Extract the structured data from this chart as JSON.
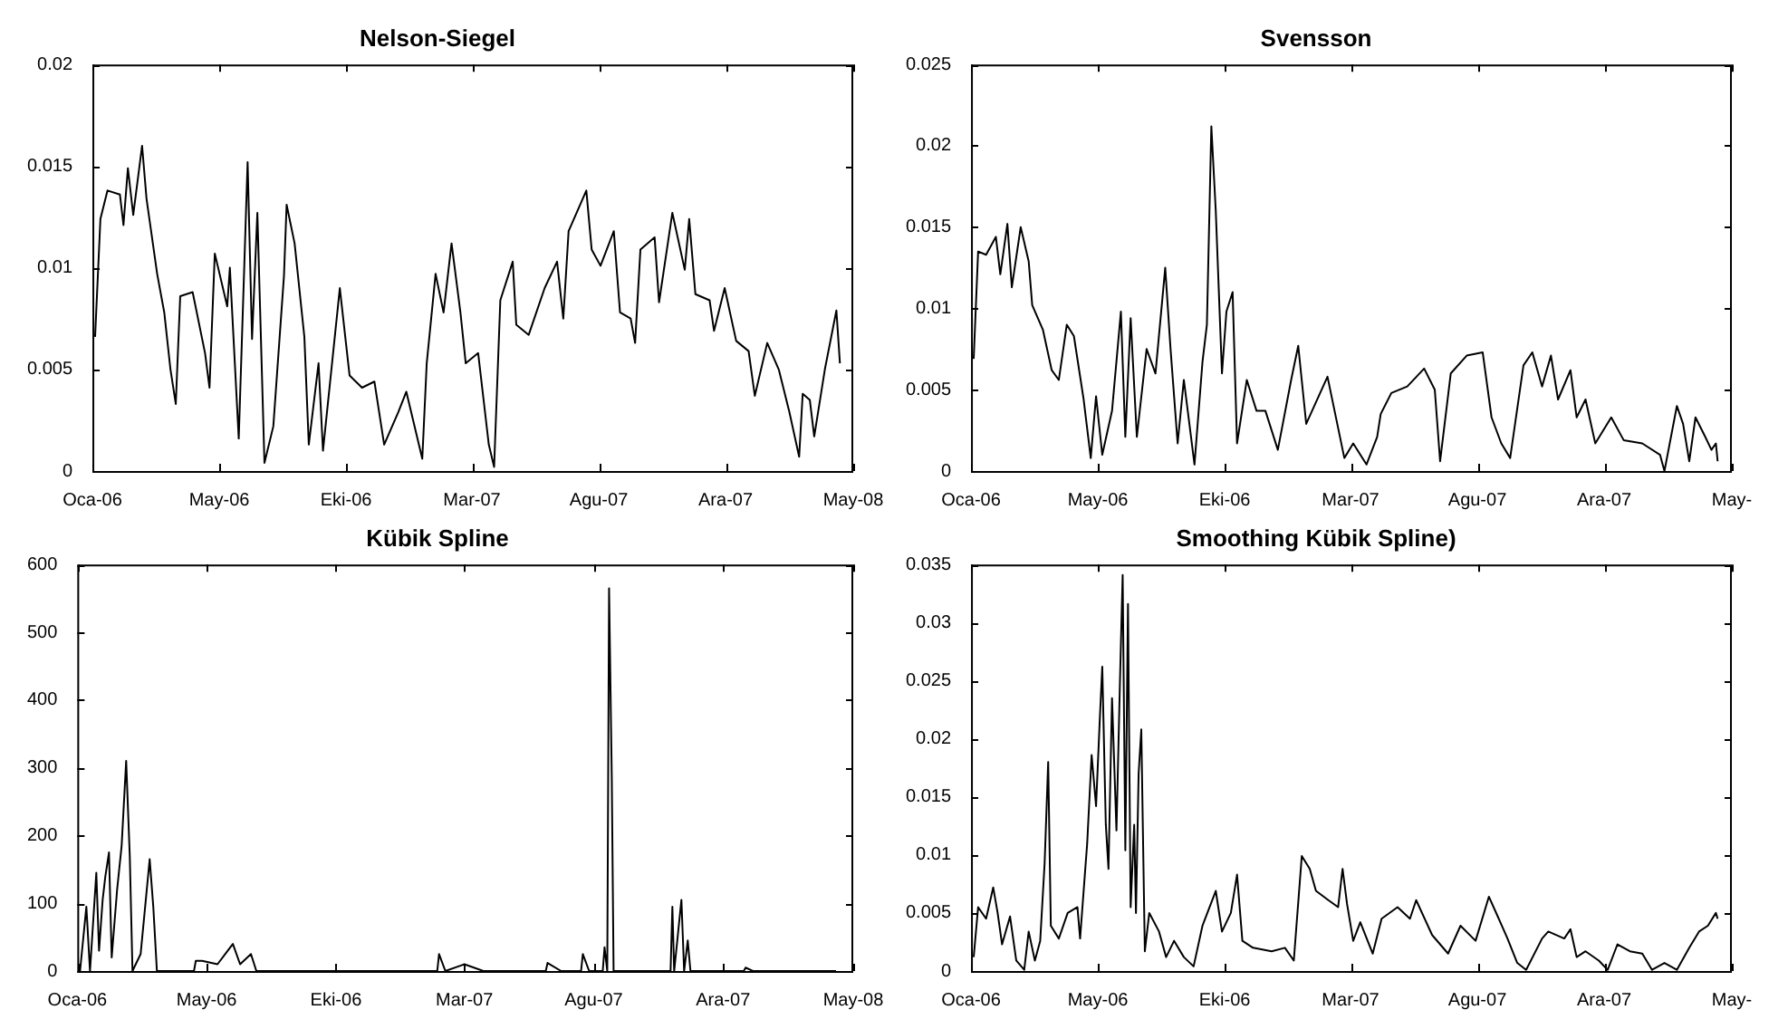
{
  "chart_data": [
    {
      "type": "line",
      "title": "Nelson-Siegel",
      "color": "#000000",
      "xlim": [
        "2006-01-07",
        "2008-05-14"
      ],
      "xticks": [
        {
          "value": "2006-01-07",
          "label": "Oca-06"
        },
        {
          "value": "2006-05-30",
          "label": "May-06"
        },
        {
          "value": "2006-10-20",
          "label": "Eki-06"
        },
        {
          "value": "2007-03-11",
          "label": "Mar-07"
        },
        {
          "value": "2007-08-01",
          "label": "Agu-07"
        },
        {
          "value": "2007-12-22",
          "label": "Ara-07"
        },
        {
          "value": "2008-05-14",
          "label": "May-08"
        }
      ],
      "ylim": [
        0,
        0.02
      ],
      "yticks": [
        0,
        0.005,
        0.01,
        0.015,
        0.02
      ],
      "x": [
        "2006-01-10",
        "2006-01-16",
        "2006-01-24",
        "2006-02-07",
        "2006-02-11",
        "2006-02-16",
        "2006-02-22",
        "2006-03-04",
        "2006-03-09",
        "2006-03-21",
        "2006-03-29",
        "2006-04-05",
        "2006-04-11",
        "2006-04-16",
        "2006-04-30",
        "2006-05-14",
        "2006-05-19",
        "2006-05-25",
        "2006-06-08",
        "2006-06-11",
        "2006-06-21",
        "2006-07-01",
        "2006-07-06",
        "2006-07-12",
        "2006-07-20",
        "2006-07-30",
        "2006-08-11",
        "2006-08-14",
        "2006-08-23",
        "2006-09-03",
        "2006-09-08",
        "2006-09-19",
        "2006-09-24",
        "2006-10-13",
        "2006-10-24",
        "2006-11-07",
        "2006-11-21",
        "2006-12-02",
        "2006-12-18",
        "2006-12-27",
        "2007-01-14",
        "2007-01-19",
        "2007-01-29",
        "2007-02-07",
        "2007-02-16",
        "2007-02-26",
        "2007-03-04",
        "2007-03-18",
        "2007-03-30",
        "2007-04-05",
        "2007-04-12",
        "2007-04-26",
        "2007-04-30",
        "2007-05-14",
        "2007-06-01",
        "2007-06-15",
        "2007-06-22",
        "2007-06-28",
        "2007-07-18",
        "2007-07-24",
        "2007-08-03",
        "2007-08-18",
        "2007-08-25",
        "2007-09-06",
        "2007-09-11",
        "2007-09-17",
        "2007-10-03",
        "2007-10-08",
        "2007-10-23",
        "2007-11-06",
        "2007-11-11",
        "2007-11-18",
        "2007-12-04",
        "2007-12-09",
        "2007-12-21",
        "2008-01-03",
        "2008-01-17",
        "2008-01-24",
        "2008-02-07",
        "2008-02-20",
        "2008-03-03",
        "2008-03-14",
        "2008-03-18",
        "2008-03-26",
        "2008-03-31",
        "2008-04-12",
        "2008-04-25",
        "2008-04-29"
      ],
      "values": [
        0.0066,
        0.0124,
        0.0138,
        0.0136,
        0.0121,
        0.0149,
        0.0126,
        0.016,
        0.0134,
        0.0097,
        0.0078,
        0.005,
        0.0033,
        0.0086,
        0.0088,
        0.0058,
        0.0041,
        0.0107,
        0.0081,
        0.01,
        0.0016,
        0.0152,
        0.0065,
        0.0127,
        0.0004,
        0.0022,
        0.0096,
        0.0131,
        0.0112,
        0.0066,
        0.0013,
        0.0053,
        0.001,
        0.009,
        0.0047,
        0.0041,
        0.0044,
        0.0013,
        0.0029,
        0.0039,
        0.0006,
        0.0053,
        0.0097,
        0.0078,
        0.0112,
        0.0078,
        0.0053,
        0.0058,
        0.0013,
        0.0002,
        0.0084,
        0.0103,
        0.0072,
        0.0067,
        0.009,
        0.0103,
        0.0075,
        0.0118,
        0.0138,
        0.0109,
        0.0101,
        0.0118,
        0.0078,
        0.0075,
        0.0063,
        0.0109,
        0.0115,
        0.0083,
        0.0127,
        0.0099,
        0.0124,
        0.0087,
        0.0084,
        0.0069,
        0.009,
        0.0064,
        0.0059,
        0.0037,
        0.0063,
        0.005,
        0.0029,
        0.0007,
        0.0038,
        0.0035,
        0.0017,
        0.005,
        0.0079,
        0.0053
      ]
    },
    {
      "type": "line",
      "title": "Svensson",
      "color": "#000000",
      "xlim": [
        "2006-01-07",
        "2008-05-14"
      ],
      "xticks": [
        {
          "value": "2006-01-07",
          "label": "Oca-06"
        },
        {
          "value": "2006-05-30",
          "label": "May-06"
        },
        {
          "value": "2006-10-20",
          "label": "Eki-06"
        },
        {
          "value": "2007-03-11",
          "label": "Mar-07"
        },
        {
          "value": "2007-08-01",
          "label": "Agu-07"
        },
        {
          "value": "2007-12-22",
          "label": "Ara-07"
        },
        {
          "value": "2008-05-14",
          "label": "May-"
        }
      ],
      "ylim": [
        0,
        0.025
      ],
      "yticks": [
        0,
        0.005,
        0.01,
        0.015,
        0.02,
        0.025
      ],
      "x": [
        "2006-01-10",
        "2006-01-15",
        "2006-01-24",
        "2006-02-04",
        "2006-02-09",
        "2006-02-17",
        "2006-02-22",
        "2006-03-04",
        "2006-03-13",
        "2006-03-17",
        "2006-03-29",
        "2006-04-08",
        "2006-04-16",
        "2006-04-25",
        "2006-05-03",
        "2006-05-14",
        "2006-05-22",
        "2006-05-28",
        "2006-06-04",
        "2006-06-15",
        "2006-06-25",
        "2006-06-30",
        "2006-07-06",
        "2006-07-13",
        "2006-07-24",
        "2006-08-03",
        "2006-08-14",
        "2006-08-20",
        "2006-08-28",
        "2006-09-04",
        "2006-09-16",
        "2006-09-25",
        "2006-09-30",
        "2006-10-05",
        "2006-10-10",
        "2006-10-17",
        "2006-10-22",
        "2006-10-29",
        "2006-11-03",
        "2006-11-14",
        "2006-11-25",
        "2006-12-05",
        "2006-12-19",
        "2007-01-03",
        "2007-01-11",
        "2007-01-20",
        "2007-02-13",
        "2007-03-04",
        "2007-03-14",
        "2007-03-29",
        "2007-04-10",
        "2007-04-14",
        "2007-04-26",
        "2007-05-14",
        "2007-06-02",
        "2007-06-14",
        "2007-06-20",
        "2007-07-02",
        "2007-07-20",
        "2007-08-07",
        "2007-08-17",
        "2007-08-28",
        "2007-09-07",
        "2007-09-22",
        "2007-10-02",
        "2007-10-13",
        "2007-10-23",
        "2007-10-31",
        "2007-11-14",
        "2007-11-21",
        "2007-12-01",
        "2007-12-12",
        "2007-12-30",
        "2008-01-13",
        "2008-02-03",
        "2008-02-23",
        "2008-02-28",
        "2008-03-13",
        "2008-03-20",
        "2008-03-27",
        "2008-04-03",
        "2008-04-14",
        "2008-04-21",
        "2008-04-26",
        "2008-04-28"
      ],
      "values": [
        0.0069,
        0.0135,
        0.0133,
        0.0144,
        0.0121,
        0.0152,
        0.0113,
        0.015,
        0.0129,
        0.0102,
        0.0087,
        0.0062,
        0.0056,
        0.009,
        0.0083,
        0.0044,
        0.0008,
        0.0046,
        0.001,
        0.0037,
        0.0098,
        0.0021,
        0.0094,
        0.0021,
        0.0075,
        0.006,
        0.0125,
        0.0075,
        0.0017,
        0.0056,
        0.0004,
        0.0067,
        0.009,
        0.0212,
        0.016,
        0.006,
        0.0098,
        0.011,
        0.0017,
        0.0056,
        0.0037,
        0.0037,
        0.0013,
        0.0056,
        0.0077,
        0.0029,
        0.0058,
        0.0008,
        0.0017,
        0.0004,
        0.0021,
        0.0035,
        0.0048,
        0.0052,
        0.0063,
        0.005,
        0.0006,
        0.006,
        0.0071,
        0.0073,
        0.0033,
        0.0017,
        0.0008,
        0.0065,
        0.0073,
        0.0052,
        0.0071,
        0.0044,
        0.0062,
        0.0033,
        0.0044,
        0.0017,
        0.0033,
        0.0019,
        0.0017,
        0.001,
        0,
        0.004,
        0.0029,
        0.0006,
        0.0033,
        0.0021,
        0.0013,
        0.0017,
        0.0006
      ]
    },
    {
      "type": "line",
      "title": "Kübik Spline",
      "color": "#000000",
      "xlim": [
        "2006-01-07",
        "2008-05-14"
      ],
      "xticks": [
        {
          "value": "2006-01-07",
          "label": "Oca-06"
        },
        {
          "value": "2006-05-30",
          "label": "May-06"
        },
        {
          "value": "2006-10-20",
          "label": "Eki-06"
        },
        {
          "value": "2007-03-11",
          "label": "Mar-07"
        },
        {
          "value": "2007-08-01",
          "label": "Agu-07"
        },
        {
          "value": "2007-12-22",
          "label": "Ara-07"
        },
        {
          "value": "2008-05-14",
          "label": "May-08"
        }
      ],
      "ylim": [
        0,
        600
      ],
      "yticks": [
        0,
        100,
        200,
        300,
        400,
        500,
        600
      ],
      "x": [
        "2006-01-10",
        "2006-01-17",
        "2006-01-21",
        "2006-01-28",
        "2006-01-31",
        "2006-02-04",
        "2006-02-07",
        "2006-02-11",
        "2006-02-14",
        "2006-02-20",
        "2006-02-25",
        "2006-03-02",
        "2006-03-06",
        "2006-03-09",
        "2006-03-18",
        "2006-03-28",
        "2006-04-01",
        "2006-04-05",
        "2006-05-16",
        "2006-05-18",
        "2006-05-25",
        "2006-06-11",
        "2006-06-28",
        "2006-07-06",
        "2006-07-18",
        "2006-07-24",
        "2006-11-11",
        "2007-02-09",
        "2007-02-11",
        "2007-02-18",
        "2007-03-11",
        "2007-04-01",
        "2007-06-09",
        "2007-06-11",
        "2007-06-26",
        "2007-07-18",
        "2007-07-20",
        "2007-07-27",
        "2007-08-11",
        "2007-08-13",
        "2007-08-16",
        "2007-08-18",
        "2007-08-21",
        "2007-08-23",
        "2007-10-25",
        "2007-10-27",
        "2007-10-29",
        "2007-11-06",
        "2007-11-09",
        "2007-11-13",
        "2007-11-16",
        "2008-01-14",
        "2008-01-16",
        "2008-01-24",
        "2008-04-25"
      ],
      "values": [
        0,
        95,
        0,
        145,
        30,
        105,
        140,
        175,
        20,
        120,
        185,
        310,
        170,
        0,
        25,
        165,
        95,
        0,
        0,
        15,
        15,
        10,
        40,
        10,
        25,
        0,
        0,
        0,
        25,
        0,
        10,
        0,
        0,
        12,
        0,
        0,
        25,
        0,
        0,
        35,
        0,
        565,
        285,
        0,
        0,
        95,
        0,
        105,
        0,
        45,
        0,
        0,
        5,
        0,
        0
      ]
    },
    {
      "type": "line",
      "title": "Smoothing Kübik Spline)",
      "color": "#000000",
      "xlim": [
        "2006-01-07",
        "2008-05-14"
      ],
      "xticks": [
        {
          "value": "2006-01-07",
          "label": "Oca-06"
        },
        {
          "value": "2006-05-30",
          "label": "May-06"
        },
        {
          "value": "2006-10-20",
          "label": "Eki-06"
        },
        {
          "value": "2007-03-11",
          "label": "Mar-07"
        },
        {
          "value": "2007-08-01",
          "label": "Agu-07"
        },
        {
          "value": "2007-12-22",
          "label": "Ara-07"
        },
        {
          "value": "2008-05-14",
          "label": "May-"
        }
      ],
      "ylim": [
        0,
        0.035
      ],
      "yticks": [
        0,
        0.005,
        0.01,
        0.015,
        0.02,
        0.025,
        0.03,
        0.035
      ],
      "x": [
        "2006-01-10",
        "2006-01-15",
        "2006-01-24",
        "2006-02-01",
        "2006-02-06",
        "2006-02-11",
        "2006-02-20",
        "2006-02-27",
        "2006-03-08",
        "2006-03-13",
        "2006-03-20",
        "2006-03-26",
        "2006-03-31",
        "2006-04-04",
        "2006-04-07",
        "2006-04-16",
        "2006-04-26",
        "2006-05-07",
        "2006-05-10",
        "2006-05-18",
        "2006-05-23",
        "2006-05-28",
        "2006-06-01",
        "2006-06-04",
        "2006-06-08",
        "2006-06-11",
        "2006-06-15",
        "2006-06-20",
        "2006-06-24",
        "2006-06-27",
        "2006-06-30",
        "2006-07-03",
        "2006-07-06",
        "2006-07-10",
        "2006-07-12",
        "2006-07-15",
        "2006-07-18",
        "2006-07-22",
        "2006-07-27",
        "2006-08-07",
        "2006-08-15",
        "2006-08-24",
        "2006-09-04",
        "2006-09-15",
        "2006-09-25",
        "2006-10-10",
        "2006-10-17",
        "2006-10-27",
        "2006-11-03",
        "2006-11-09",
        "2006-11-21",
        "2006-12-12",
        "2006-12-27",
        "2007-01-06",
        "2007-01-15",
        "2007-01-24",
        "2007-01-31",
        "2007-02-14",
        "2007-02-25",
        "2007-03-02",
        "2007-03-07",
        "2007-03-14",
        "2007-03-22",
        "2007-04-05",
        "2007-04-15",
        "2007-05-03",
        "2007-05-17",
        "2007-05-24",
        "2007-06-11",
        "2007-06-29",
        "2007-07-13",
        "2007-07-30",
        "2007-08-14",
        "2007-08-24",
        "2007-09-04",
        "2007-09-15",
        "2007-09-25",
        "2007-10-13",
        "2007-10-20",
        "2007-11-07",
        "2007-11-14",
        "2007-11-21",
        "2007-12-01",
        "2007-12-16",
        "2007-12-26",
        "2008-01-06",
        "2008-01-20",
        "2008-02-03",
        "2008-02-14",
        "2008-02-28",
        "2008-03-13",
        "2008-03-27",
        "2008-04-07",
        "2008-04-17",
        "2008-04-26",
        "2008-04-28"
      ],
      "values": [
        0.0012,
        0.0055,
        0.0045,
        0.0072,
        0.005,
        0.0023,
        0.0047,
        0.0009,
        0.0001,
        0.0034,
        0.0009,
        0.0026,
        0.0093,
        0.018,
        0.0039,
        0.0028,
        0.005,
        0.0055,
        0.0028,
        0.011,
        0.0186,
        0.0142,
        0.0213,
        0.0262,
        0.0126,
        0.0088,
        0.0235,
        0.0121,
        0.0251,
        0.0341,
        0.0104,
        0.0316,
        0.0055,
        0.0126,
        0.005,
        0.017,
        0.0208,
        0.0017,
        0.005,
        0.0034,
        0.0012,
        0.0026,
        0.0012,
        0.0004,
        0.0039,
        0.0069,
        0.0034,
        0.005,
        0.0083,
        0.0026,
        0.002,
        0.0017,
        0.002,
        0.0009,
        0.0099,
        0.0088,
        0.0069,
        0.0061,
        0.0055,
        0.0088,
        0.0058,
        0.0026,
        0.0042,
        0.0015,
        0.0045,
        0.0055,
        0.0045,
        0.0061,
        0.0031,
        0.0015,
        0.0039,
        0.0026,
        0.0064,
        0.0047,
        0.0028,
        0.0007,
        0.0001,
        0.0028,
        0.0034,
        0.0028,
        0.0036,
        0.0012,
        0.0017,
        0.0009,
        0.0001,
        0.0023,
        0.0017,
        0.0015,
        0.0001,
        0.0007,
        0.0001,
        0.002,
        0.0034,
        0.0039,
        0.005,
        0.0045
      ]
    }
  ]
}
